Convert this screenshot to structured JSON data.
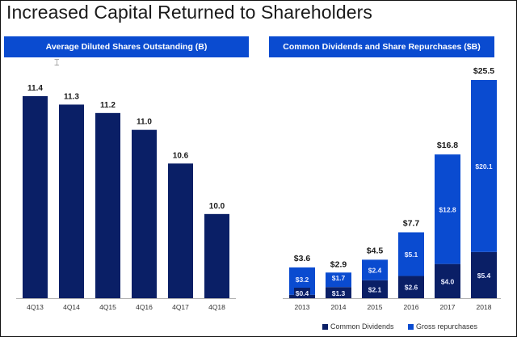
{
  "page": {
    "title": "Increased Capital Returned to Shareholders"
  },
  "colors": {
    "header_bg": "#0a4bd0",
    "dark_bar": "#0a1f66",
    "light_bar": "#0a4bd0",
    "text_dark": "#1a1a1a"
  },
  "chart_data": [
    {
      "type": "bar",
      "title": "Average Diluted Shares Outstanding (B)",
      "categories": [
        "4Q13",
        "4Q14",
        "4Q15",
        "4Q16",
        "4Q17",
        "4Q18"
      ],
      "values": [
        11.4,
        11.3,
        11.2,
        11.0,
        10.6,
        10.0
      ],
      "data_labels": [
        "11.4",
        "11.3",
        "11.2",
        "11.0",
        "10.6",
        "10.0"
      ],
      "xlabel": "",
      "ylabel": "",
      "ylim": [
        9.0,
        11.4
      ],
      "grid": false,
      "legend": "none"
    },
    {
      "type": "bar",
      "stacked": true,
      "title": "Common Dividends and Share Repurchases ($B)",
      "categories": [
        "2013",
        "2014",
        "2015",
        "2016",
        "2017",
        "2018"
      ],
      "series": [
        {
          "name": "Common Dividends",
          "values": [
            0.4,
            1.3,
            2.1,
            2.6,
            4.0,
            5.4
          ],
          "labels": [
            "$0.4",
            "$1.3",
            "$2.1",
            "$2.6",
            "$4.0",
            "$5.4"
          ]
        },
        {
          "name": "Gross repurchases",
          "values": [
            3.2,
            1.7,
            2.4,
            5.1,
            12.8,
            20.1
          ],
          "labels": [
            "$3.2",
            "$1.7",
            "$2.4",
            "$5.1",
            "$12.8",
            "$20.1"
          ]
        }
      ],
      "totals": [
        3.6,
        2.9,
        4.5,
        7.7,
        16.8,
        25.5
      ],
      "total_labels": [
        "$3.6",
        "$2.9",
        "$4.5",
        "$7.7",
        "$16.8",
        "$25.5"
      ],
      "xlabel": "",
      "ylabel": "",
      "ylim": [
        0,
        25.5
      ],
      "grid": false,
      "legend": "bottom"
    }
  ]
}
